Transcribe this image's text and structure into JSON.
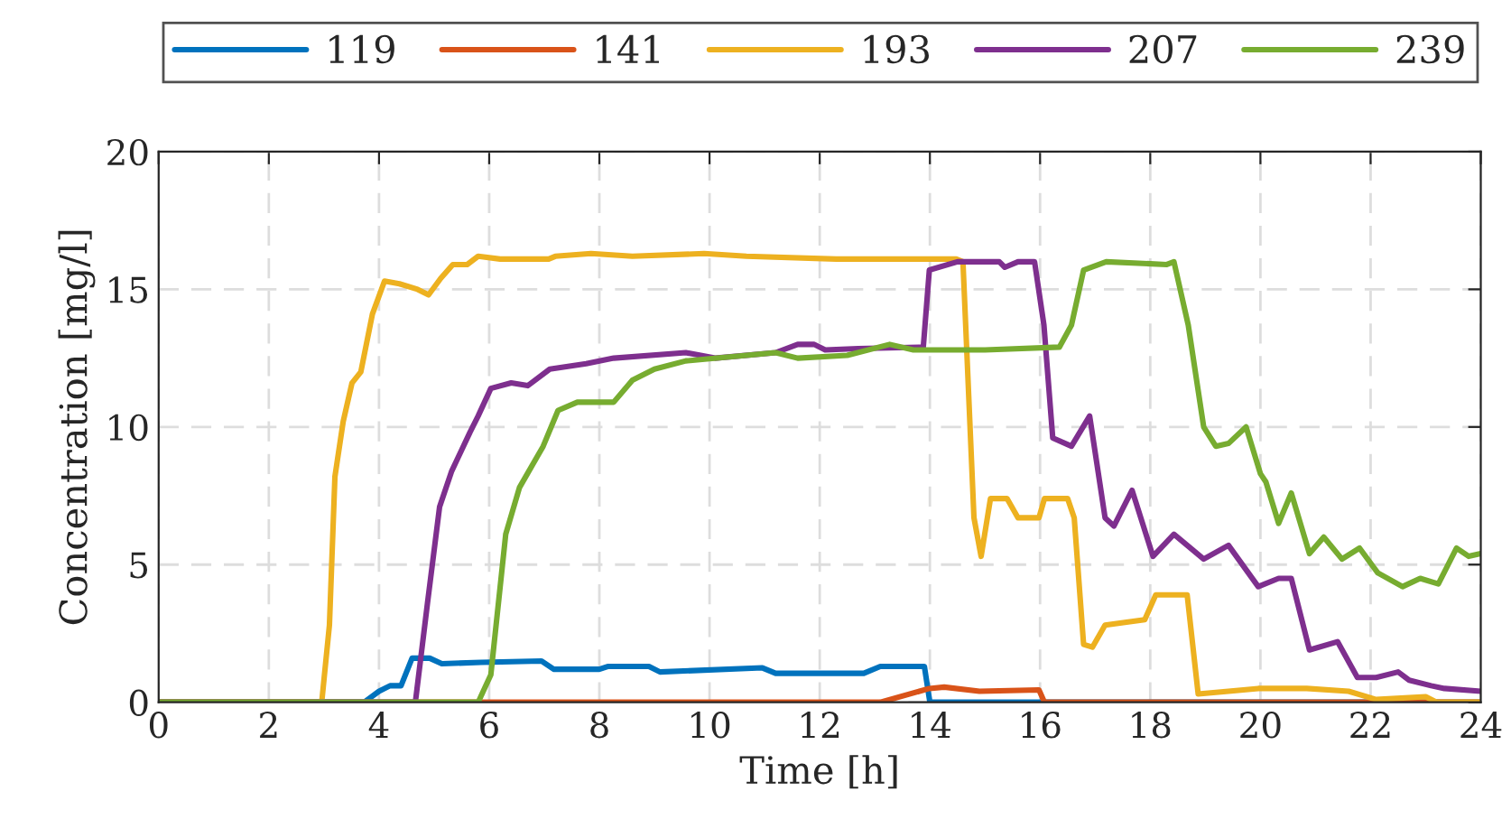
{
  "chart_data": {
    "type": "line",
    "xlabel": "Time [h]",
    "ylabel": "Concentration [mg/l]",
    "xlim": [
      0,
      24
    ],
    "ylim": [
      0,
      20
    ],
    "xticks": [
      0,
      2,
      4,
      6,
      8,
      10,
      12,
      14,
      16,
      18,
      20,
      22,
      24
    ],
    "yticks": [
      0,
      5,
      10,
      15,
      20
    ],
    "grid": true,
    "legend": "top",
    "line_style": "solid",
    "marker": "none",
    "series": [
      {
        "name": "119",
        "color": "#0072bd",
        "x": [
          0,
          3.73,
          4.0,
          4.2,
          4.4,
          4.6,
          4.92,
          5.14,
          5.85,
          6.95,
          7.17,
          8.0,
          8.15,
          8.9,
          9.1,
          10.96,
          11.2,
          12.8,
          13.1,
          13.9,
          14.0,
          24
        ],
        "values": [
          0,
          0,
          0.4,
          0.6,
          0.6,
          1.6,
          1.6,
          1.4,
          1.45,
          1.5,
          1.2,
          1.2,
          1.3,
          1.3,
          1.1,
          1.25,
          1.05,
          1.05,
          1.3,
          1.3,
          0,
          0
        ]
      },
      {
        "name": "141",
        "color": "#d95319",
        "x": [
          0,
          13.1,
          13.99,
          14.26,
          14.9,
          15.98,
          16.08,
          24
        ],
        "values": [
          0,
          0,
          0.5,
          0.55,
          0.4,
          0.45,
          0,
          0
        ]
      },
      {
        "name": "193",
        "color": "#edb120",
        "x": [
          0,
          2.96,
          3.1,
          3.2,
          3.35,
          3.51,
          3.67,
          3.88,
          4.1,
          4.37,
          4.7,
          4.9,
          5.12,
          5.34,
          5.6,
          5.8,
          6.2,
          7.08,
          7.2,
          7.85,
          8.6,
          9.9,
          10.67,
          12.3,
          14.48,
          14.6,
          14.8,
          14.93,
          15.1,
          15.4,
          15.6,
          15.98,
          16.08,
          16.5,
          16.62,
          16.79,
          16.95,
          17.18,
          17.9,
          18.1,
          18.67,
          18.87,
          19.42,
          19.96,
          20.84,
          21.6,
          22.1,
          23.0,
          23.2,
          24
        ],
        "values": [
          0,
          0,
          2.8,
          8.2,
          10.2,
          11.6,
          12.0,
          14.1,
          15.3,
          15.2,
          15.0,
          14.8,
          15.4,
          15.9,
          15.9,
          16.2,
          16.1,
          16.1,
          16.2,
          16.3,
          16.2,
          16.3,
          16.2,
          16.1,
          16.1,
          16.0,
          6.7,
          5.3,
          7.4,
          7.4,
          6.7,
          6.7,
          7.4,
          7.4,
          6.7,
          2.1,
          2.0,
          2.8,
          3.0,
          3.9,
          3.9,
          0.3,
          0.4,
          0.5,
          0.5,
          0.4,
          0.1,
          0.2,
          0,
          0
        ]
      },
      {
        "name": "207",
        "color": "#7e2f8e",
        "x": [
          0,
          4.66,
          4.88,
          5.1,
          5.32,
          5.65,
          5.8,
          6.03,
          6.4,
          6.7,
          7.1,
          7.76,
          8.26,
          9.57,
          10.1,
          11.2,
          11.6,
          11.9,
          12.1,
          12.7,
          13.88,
          13.99,
          14.5,
          15.26,
          15.36,
          15.6,
          15.9,
          16.07,
          16.23,
          16.57,
          16.9,
          17.18,
          17.34,
          17.67,
          18.05,
          18.43,
          18.97,
          19.42,
          19.96,
          20.33,
          20.56,
          20.89,
          21.4,
          21.76,
          22.1,
          22.5,
          22.7,
          23.1,
          23.34,
          24
        ],
        "values": [
          0,
          0,
          3.6,
          7.1,
          8.4,
          9.8,
          10.4,
          11.4,
          11.6,
          11.5,
          12.1,
          12.3,
          12.5,
          12.7,
          12.5,
          12.7,
          13.0,
          13.0,
          12.8,
          12.85,
          12.9,
          15.7,
          16.0,
          16.0,
          15.8,
          16.0,
          16.0,
          13.7,
          9.6,
          9.3,
          10.4,
          6.7,
          6.4,
          7.7,
          5.3,
          6.1,
          5.2,
          5.7,
          4.2,
          4.5,
          4.5,
          1.9,
          2.2,
          0.9,
          0.9,
          1.1,
          0.8,
          0.6,
          0.5,
          0.4
        ]
      },
      {
        "name": "239",
        "color": "#77ac30",
        "x": [
          0,
          5.8,
          6.03,
          6.3,
          6.55,
          6.98,
          7.25,
          7.6,
          8.26,
          8.6,
          9.0,
          9.57,
          11.2,
          11.6,
          12.5,
          13.27,
          13.7,
          15.0,
          16.35,
          16.57,
          16.79,
          17.2,
          18.3,
          18.43,
          18.69,
          18.97,
          19.19,
          19.42,
          19.74,
          20.0,
          20.1,
          20.33,
          20.56,
          20.89,
          21.15,
          21.48,
          21.8,
          22.13,
          22.58,
          22.9,
          23.23,
          23.56,
          23.78,
          24
        ],
        "values": [
          0,
          0,
          1.0,
          6.1,
          7.8,
          9.3,
          10.6,
          10.9,
          10.9,
          11.7,
          12.1,
          12.4,
          12.7,
          12.5,
          12.6,
          13.0,
          12.8,
          12.8,
          12.9,
          13.7,
          15.7,
          16.0,
          15.9,
          16.0,
          13.7,
          10.0,
          9.3,
          9.4,
          10.0,
          8.3,
          8.0,
          6.5,
          7.6,
          5.4,
          6.0,
          5.2,
          5.6,
          4.7,
          4.2,
          4.5,
          4.3,
          5.6,
          5.3,
          5.4
        ]
      }
    ]
  }
}
